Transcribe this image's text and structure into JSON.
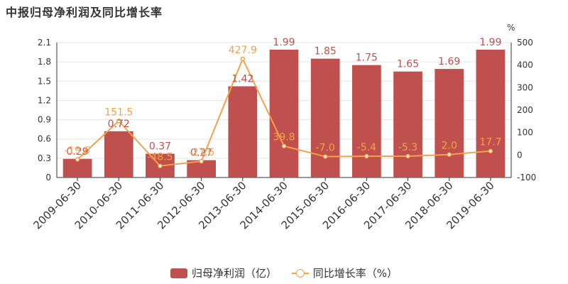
{
  "chart_data": {
    "type": "bar",
    "title": "中报归母净利润及同比增长率",
    "categories": [
      "2009-06-30",
      "2010-06-30",
      "2011-06-30",
      "2012-06-30",
      "2013-06-30",
      "2014-06-30",
      "2015-06-30",
      "2016-06-30",
      "2017-06-30",
      "2018-06-30",
      "2019-06-30"
    ],
    "series": [
      {
        "name": "归母净利润（亿）",
        "kind": "bar",
        "axis": "left",
        "color": "#C0504D",
        "values": [
          0.29,
          0.72,
          0.37,
          0.27,
          1.42,
          1.99,
          1.85,
          1.75,
          1.65,
          1.69,
          1.99
        ],
        "labels": [
          "0.29",
          "0.72",
          "0.37",
          "0.27",
          "1.42",
          "1.99",
          "1.85",
          "1.75",
          "1.65",
          "1.69",
          "1.99"
        ]
      },
      {
        "name": "同比增长率（%）",
        "kind": "line",
        "axis": "right",
        "color": "#F5A04B",
        "values": [
          -19.6,
          151.5,
          -48.5,
          -27.6,
          427.9,
          39.8,
          -7.0,
          -5.4,
          -5.3,
          2.0,
          17.7
        ],
        "labels": [
          "-19.6",
          "151.5",
          "-48.5",
          "-27.6",
          "427.9",
          "39.8",
          "-7.0",
          "-5.4",
          "-5.3",
          "2.0",
          "17.7"
        ]
      }
    ],
    "y_left": {
      "min": 0,
      "max": 2.1,
      "ticks": [
        "0",
        "0.3",
        "0.6",
        "0.9",
        "1.2",
        "1.5",
        "1.8",
        "2.1"
      ]
    },
    "y_right": {
      "min": -100,
      "max": 500,
      "unit": "%",
      "ticks": [
        "-100",
        "0",
        "100",
        "200",
        "300",
        "400",
        "500"
      ]
    },
    "grid": true,
    "legend": "bottom-center"
  }
}
